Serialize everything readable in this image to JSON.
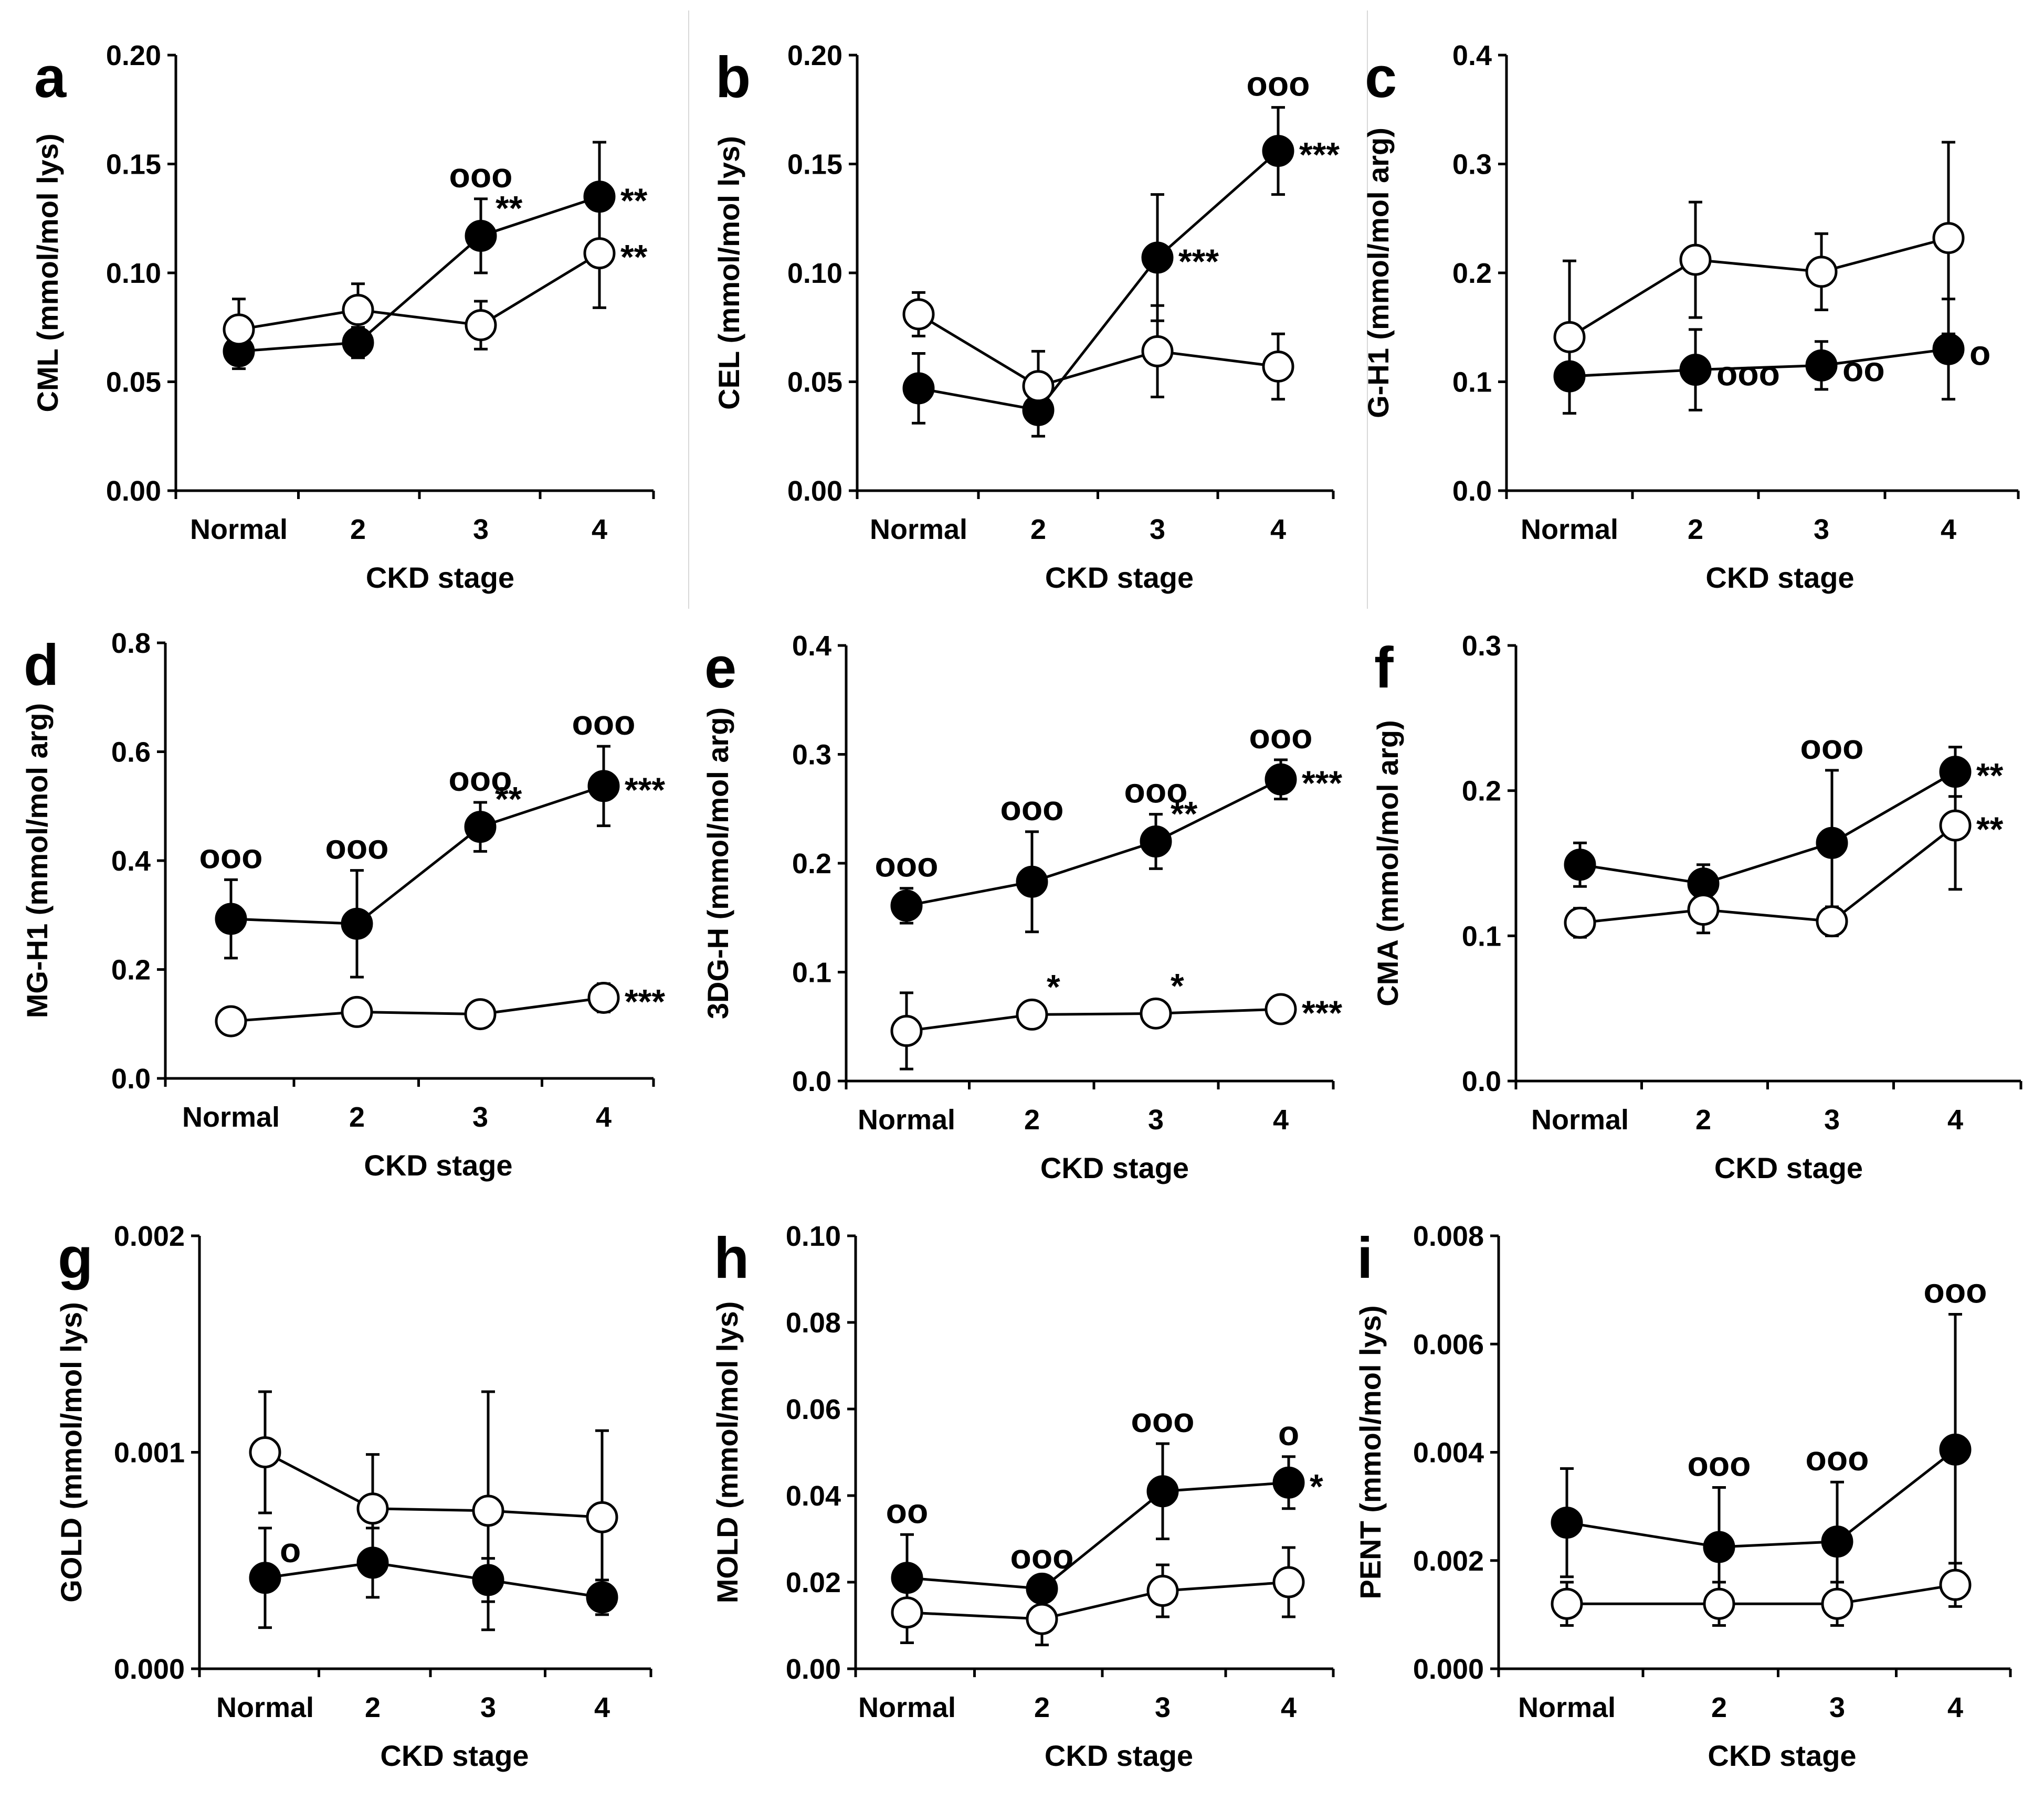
{
  "chart_data": [
    {
      "panel": "a",
      "type": "line",
      "ylabel": "CML (mmol/mol lys)",
      "xlabel": "CKD stage",
      "categories": [
        "Normal",
        "2",
        "3",
        "4"
      ],
      "ylim": [
        0,
        0.2
      ],
      "yticks": [
        "0.00",
        "0.05",
        "0.10",
        "0.15",
        "0.20"
      ],
      "series": [
        {
          "name": "filled",
          "values": [
            0.064,
            0.068,
            0.117,
            0.135
          ],
          "errors": [
            0.008,
            0.007,
            0.017,
            0.025
          ]
        },
        {
          "name": "open",
          "values": [
            0.074,
            0.083,
            0.076,
            0.109
          ],
          "errors": [
            0.014,
            0.012,
            0.011,
            0.025
          ]
        }
      ],
      "annotations": [
        {
          "text": "ooo",
          "series": 0,
          "index": 2,
          "pos": "above"
        },
        {
          "text": "**",
          "series": 0,
          "index": 2,
          "pos": "upright"
        },
        {
          "text": "**",
          "series": 0,
          "index": 3,
          "pos": "right"
        },
        {
          "text": "**",
          "series": 1,
          "index": 3,
          "pos": "right"
        }
      ]
    },
    {
      "panel": "b",
      "type": "line",
      "ylabel": "CEL (mmol/mol  lys)",
      "xlabel": "CKD stage",
      "categories": [
        "Normal",
        "2",
        "3",
        "4"
      ],
      "ylim": [
        0,
        0.2
      ],
      "yticks": [
        "0.00",
        "0.05",
        "0.10",
        "0.15",
        "0.20"
      ],
      "series": [
        {
          "name": "filled",
          "values": [
            0.047,
            0.037,
            0.107,
            0.156
          ],
          "errors": [
            0.016,
            0.012,
            0.029,
            0.02
          ]
        },
        {
          "name": "open",
          "values": [
            0.081,
            0.048,
            0.064,
            0.057
          ],
          "errors": [
            0.01,
            0.016,
            0.021,
            0.015
          ]
        }
      ],
      "annotations": [
        {
          "text": "ooo",
          "series": 0,
          "index": 3,
          "pos": "above"
        },
        {
          "text": "***",
          "series": 0,
          "index": 2,
          "pos": "right"
        },
        {
          "text": "***",
          "series": 0,
          "index": 3,
          "pos": "right"
        }
      ]
    },
    {
      "panel": "c",
      "type": "line",
      "ylabel": "G-H1 (mmol/mol  arg)",
      "xlabel": "CKD stage",
      "categories": [
        "Normal",
        "2",
        "3",
        "4"
      ],
      "ylim": [
        0,
        0.4
      ],
      "yticks": [
        "0.0",
        "0.1",
        "0.2",
        "0.3",
        "0.4"
      ],
      "series": [
        {
          "name": "filled",
          "values": [
            0.105,
            0.111,
            0.115,
            0.13
          ],
          "errors": [
            0.01,
            0.037,
            0.022,
            0.046
          ]
        },
        {
          "name": "open",
          "values": [
            0.141,
            0.212,
            0.201,
            0.232
          ],
          "errors": [
            0.07,
            0.053,
            0.035,
            0.088
          ]
        }
      ],
      "annotations": [
        {
          "text": "ooo",
          "series": 0,
          "index": 1,
          "pos": "right"
        },
        {
          "text": "oo",
          "series": 0,
          "index": 2,
          "pos": "right"
        },
        {
          "text": "o",
          "series": 0,
          "index": 3,
          "pos": "right"
        }
      ]
    },
    {
      "panel": "d",
      "type": "line",
      "ylabel": "MG-H1 (mmol/mol  arg)",
      "xlabel": "CKD stage",
      "categories": [
        "Normal",
        "2",
        "3",
        "4"
      ],
      "ylim": [
        0,
        0.8
      ],
      "yticks": [
        "0.0",
        "0.2",
        "0.4",
        "0.6",
        "0.8"
      ],
      "series": [
        {
          "name": "filled",
          "values": [
            0.293,
            0.284,
            0.462,
            0.537
          ],
          "errors": [
            0.072,
            0.098,
            0.045,
            0.073
          ]
        },
        {
          "name": "open",
          "values": [
            0.105,
            0.122,
            0.118,
            0.148
          ],
          "errors": [
            0.01,
            0.01,
            0.01,
            0.026
          ]
        }
      ],
      "annotations": [
        {
          "text": "ooo",
          "series": 0,
          "index": 0,
          "pos": "above"
        },
        {
          "text": "ooo",
          "series": 0,
          "index": 1,
          "pos": "above"
        },
        {
          "text": "ooo",
          "series": 0,
          "index": 2,
          "pos": "above"
        },
        {
          "text": "ooo",
          "series": 0,
          "index": 3,
          "pos": "above"
        },
        {
          "text": "**",
          "series": 0,
          "index": 2,
          "pos": "upright"
        },
        {
          "text": "***",
          "series": 0,
          "index": 3,
          "pos": "right"
        },
        {
          "text": "***",
          "series": 1,
          "index": 3,
          "pos": "right"
        }
      ]
    },
    {
      "panel": "e",
      "type": "line",
      "ylabel": "3DG-H (mmol/mol  arg)",
      "xlabel": "CKD stage",
      "categories": [
        "Normal",
        "2",
        "3",
        "4"
      ],
      "ylim": [
        0,
        0.4
      ],
      "yticks": [
        "0.0",
        "0.1",
        "0.2",
        "0.3",
        "0.4"
      ],
      "series": [
        {
          "name": "filled",
          "values": [
            0.161,
            0.183,
            0.22,
            0.277
          ],
          "errors": [
            0.016,
            0.046,
            0.025,
            0.018
          ]
        },
        {
          "name": "open",
          "values": [
            0.046,
            0.061,
            0.062,
            0.066
          ],
          "errors": [
            0.035,
            0.007,
            0.007,
            0.012
          ]
        }
      ],
      "annotations": [
        {
          "text": "ooo",
          "series": 0,
          "index": 0,
          "pos": "above"
        },
        {
          "text": "ooo",
          "series": 0,
          "index": 1,
          "pos": "above"
        },
        {
          "text": "ooo",
          "series": 0,
          "index": 2,
          "pos": "above"
        },
        {
          "text": "ooo",
          "series": 0,
          "index": 3,
          "pos": "above"
        },
        {
          "text": "**",
          "series": 0,
          "index": 2,
          "pos": "upright"
        },
        {
          "text": "***",
          "series": 0,
          "index": 3,
          "pos": "right"
        },
        {
          "text": "*",
          "series": 1,
          "index": 1,
          "pos": "upright"
        },
        {
          "text": "*",
          "series": 1,
          "index": 2,
          "pos": "upright"
        },
        {
          "text": "***",
          "series": 1,
          "index": 3,
          "pos": "right"
        }
      ]
    },
    {
      "panel": "f",
      "type": "line",
      "ylabel": "CMA  (mmol/mol  arg)",
      "xlabel": "CKD stage",
      "categories": [
        "Normal",
        "2",
        "3",
        "4"
      ],
      "ylim": [
        0,
        0.3
      ],
      "yticks": [
        "0.0",
        "0.1",
        "0.2",
        "0.3"
      ],
      "series": [
        {
          "name": "filled",
          "values": [
            0.149,
            0.136,
            0.164,
            0.213
          ],
          "errors": [
            0.015,
            0.013,
            0.05,
            0.017
          ]
        },
        {
          "name": "open",
          "values": [
            0.109,
            0.118,
            0.11,
            0.176
          ],
          "errors": [
            0.01,
            0.016,
            0.01,
            0.044
          ]
        }
      ],
      "annotations": [
        {
          "text": "ooo",
          "series": 0,
          "index": 2,
          "pos": "above"
        },
        {
          "text": "**",
          "series": 0,
          "index": 3,
          "pos": "right"
        },
        {
          "text": "**",
          "series": 1,
          "index": 3,
          "pos": "right"
        }
      ]
    },
    {
      "panel": "g",
      "type": "line",
      "ylabel": "GOLD  (mmol/mol lys)",
      "xlabel": "CKD stage",
      "categories": [
        "Normal",
        "2",
        "3",
        "4"
      ],
      "ylim": [
        0,
        0.002
      ],
      "yticks": [
        "0.000",
        "0.001",
        "0.002"
      ],
      "series": [
        {
          "name": "filled",
          "values": [
            0.00042,
            0.00049,
            0.00041,
            0.00033
          ],
          "errors": [
            0.00023,
            0.00016,
            0.0001,
            8e-05
          ]
        },
        {
          "name": "open",
          "values": [
            0.001,
            0.00074,
            0.00073,
            0.0007
          ],
          "errors": [
            0.00028,
            0.00025,
            0.00055,
            0.0004
          ]
        }
      ],
      "annotations": [
        {
          "text": "o",
          "series": 0,
          "index": 0,
          "pos": "upright"
        }
      ]
    },
    {
      "panel": "h",
      "type": "line",
      "ylabel": "MOLD  (mmol/mol  lys)",
      "xlabel": "CKD stage",
      "categories": [
        "Normal",
        "2",
        "3",
        "4"
      ],
      "ylim": [
        0,
        0.1
      ],
      "yticks": [
        "0.00",
        "0.02",
        "0.04",
        "0.06",
        "0.08",
        "0.10"
      ],
      "series": [
        {
          "name": "filled",
          "values": [
            0.021,
            0.0185,
            0.041,
            0.043
          ],
          "errors": [
            0.01,
            0.002,
            0.011,
            0.006
          ]
        },
        {
          "name": "open",
          "values": [
            0.013,
            0.0115,
            0.018,
            0.02
          ],
          "errors": [
            0.007,
            0.006,
            0.006,
            0.008
          ]
        }
      ],
      "annotations": [
        {
          "text": "oo",
          "series": 0,
          "index": 0,
          "pos": "above"
        },
        {
          "text": "ooo",
          "series": 0,
          "index": 1,
          "pos": "above"
        },
        {
          "text": "ooo",
          "series": 0,
          "index": 2,
          "pos": "above"
        },
        {
          "text": "o",
          "series": 0,
          "index": 3,
          "pos": "above"
        },
        {
          "text": "*",
          "series": 0,
          "index": 3,
          "pos": "right"
        }
      ]
    },
    {
      "panel": "i",
      "type": "line",
      "ylabel": "PENT  (mmol/mol  lys)",
      "xlabel": "CKD stage",
      "categories": [
        "Normal",
        "2",
        "3",
        "4"
      ],
      "ylim": [
        0,
        0.008
      ],
      "yticks": [
        "0.000",
        "0.002",
        "0.004",
        "0.006",
        "0.008"
      ],
      "series": [
        {
          "name": "filled",
          "values": [
            0.0027,
            0.00225,
            0.00235,
            0.00405
          ],
          "errors": [
            0.001,
            0.0011,
            0.0011,
            0.0025
          ]
        },
        {
          "name": "open",
          "values": [
            0.0012,
            0.0012,
            0.0012,
            0.00155
          ],
          "errors": [
            0.0004,
            0.0004,
            0.0004,
            0.0004
          ]
        }
      ],
      "annotations": [
        {
          "text": "ooo",
          "series": 0,
          "index": 1,
          "pos": "above"
        },
        {
          "text": "ooo",
          "series": 0,
          "index": 2,
          "pos": "above"
        },
        {
          "text": "ooo",
          "series": 0,
          "index": 3,
          "pos": "above"
        }
      ]
    }
  ]
}
